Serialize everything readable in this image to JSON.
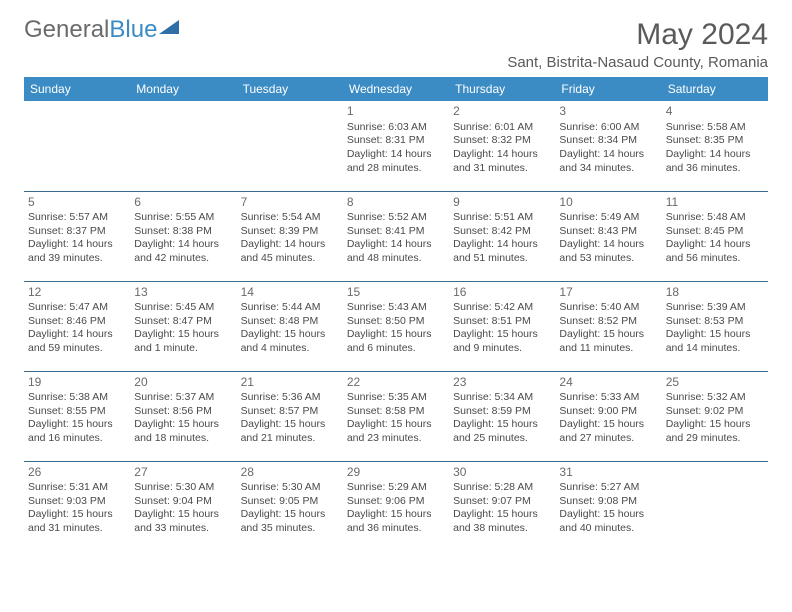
{
  "brand": {
    "part1": "General",
    "part2": "Blue"
  },
  "title": "May 2024",
  "subtitle": "Sant, Bistrita-Nasaud County, Romania",
  "header_bg": "#3b8bc4",
  "days": [
    "Sunday",
    "Monday",
    "Tuesday",
    "Wednesday",
    "Thursday",
    "Friday",
    "Saturday"
  ],
  "weeks": [
    [
      null,
      null,
      null,
      {
        "n": "1",
        "sr": "6:03 AM",
        "ss": "8:31 PM",
        "dl": "14 hours and 28 minutes."
      },
      {
        "n": "2",
        "sr": "6:01 AM",
        "ss": "8:32 PM",
        "dl": "14 hours and 31 minutes."
      },
      {
        "n": "3",
        "sr": "6:00 AM",
        "ss": "8:34 PM",
        "dl": "14 hours and 34 minutes."
      },
      {
        "n": "4",
        "sr": "5:58 AM",
        "ss": "8:35 PM",
        "dl": "14 hours and 36 minutes."
      }
    ],
    [
      {
        "n": "5",
        "sr": "5:57 AM",
        "ss": "8:37 PM",
        "dl": "14 hours and 39 minutes."
      },
      {
        "n": "6",
        "sr": "5:55 AM",
        "ss": "8:38 PM",
        "dl": "14 hours and 42 minutes."
      },
      {
        "n": "7",
        "sr": "5:54 AM",
        "ss": "8:39 PM",
        "dl": "14 hours and 45 minutes."
      },
      {
        "n": "8",
        "sr": "5:52 AM",
        "ss": "8:41 PM",
        "dl": "14 hours and 48 minutes."
      },
      {
        "n": "9",
        "sr": "5:51 AM",
        "ss": "8:42 PM",
        "dl": "14 hours and 51 minutes."
      },
      {
        "n": "10",
        "sr": "5:49 AM",
        "ss": "8:43 PM",
        "dl": "14 hours and 53 minutes."
      },
      {
        "n": "11",
        "sr": "5:48 AM",
        "ss": "8:45 PM",
        "dl": "14 hours and 56 minutes."
      }
    ],
    [
      {
        "n": "12",
        "sr": "5:47 AM",
        "ss": "8:46 PM",
        "dl": "14 hours and 59 minutes."
      },
      {
        "n": "13",
        "sr": "5:45 AM",
        "ss": "8:47 PM",
        "dl": "15 hours and 1 minute."
      },
      {
        "n": "14",
        "sr": "5:44 AM",
        "ss": "8:48 PM",
        "dl": "15 hours and 4 minutes."
      },
      {
        "n": "15",
        "sr": "5:43 AM",
        "ss": "8:50 PM",
        "dl": "15 hours and 6 minutes."
      },
      {
        "n": "16",
        "sr": "5:42 AM",
        "ss": "8:51 PM",
        "dl": "15 hours and 9 minutes."
      },
      {
        "n": "17",
        "sr": "5:40 AM",
        "ss": "8:52 PM",
        "dl": "15 hours and 11 minutes."
      },
      {
        "n": "18",
        "sr": "5:39 AM",
        "ss": "8:53 PM",
        "dl": "15 hours and 14 minutes."
      }
    ],
    [
      {
        "n": "19",
        "sr": "5:38 AM",
        "ss": "8:55 PM",
        "dl": "15 hours and 16 minutes."
      },
      {
        "n": "20",
        "sr": "5:37 AM",
        "ss": "8:56 PM",
        "dl": "15 hours and 18 minutes."
      },
      {
        "n": "21",
        "sr": "5:36 AM",
        "ss": "8:57 PM",
        "dl": "15 hours and 21 minutes."
      },
      {
        "n": "22",
        "sr": "5:35 AM",
        "ss": "8:58 PM",
        "dl": "15 hours and 23 minutes."
      },
      {
        "n": "23",
        "sr": "5:34 AM",
        "ss": "8:59 PM",
        "dl": "15 hours and 25 minutes."
      },
      {
        "n": "24",
        "sr": "5:33 AM",
        "ss": "9:00 PM",
        "dl": "15 hours and 27 minutes."
      },
      {
        "n": "25",
        "sr": "5:32 AM",
        "ss": "9:02 PM",
        "dl": "15 hours and 29 minutes."
      }
    ],
    [
      {
        "n": "26",
        "sr": "5:31 AM",
        "ss": "9:03 PM",
        "dl": "15 hours and 31 minutes."
      },
      {
        "n": "27",
        "sr": "5:30 AM",
        "ss": "9:04 PM",
        "dl": "15 hours and 33 minutes."
      },
      {
        "n": "28",
        "sr": "5:30 AM",
        "ss": "9:05 PM",
        "dl": "15 hours and 35 minutes."
      },
      {
        "n": "29",
        "sr": "5:29 AM",
        "ss": "9:06 PM",
        "dl": "15 hours and 36 minutes."
      },
      {
        "n": "30",
        "sr": "5:28 AM",
        "ss": "9:07 PM",
        "dl": "15 hours and 38 minutes."
      },
      {
        "n": "31",
        "sr": "5:27 AM",
        "ss": "9:08 PM",
        "dl": "15 hours and 40 minutes."
      },
      null
    ]
  ],
  "labels": {
    "sunrise": "Sunrise:",
    "sunset": "Sunset:",
    "daylight": "Daylight:"
  }
}
